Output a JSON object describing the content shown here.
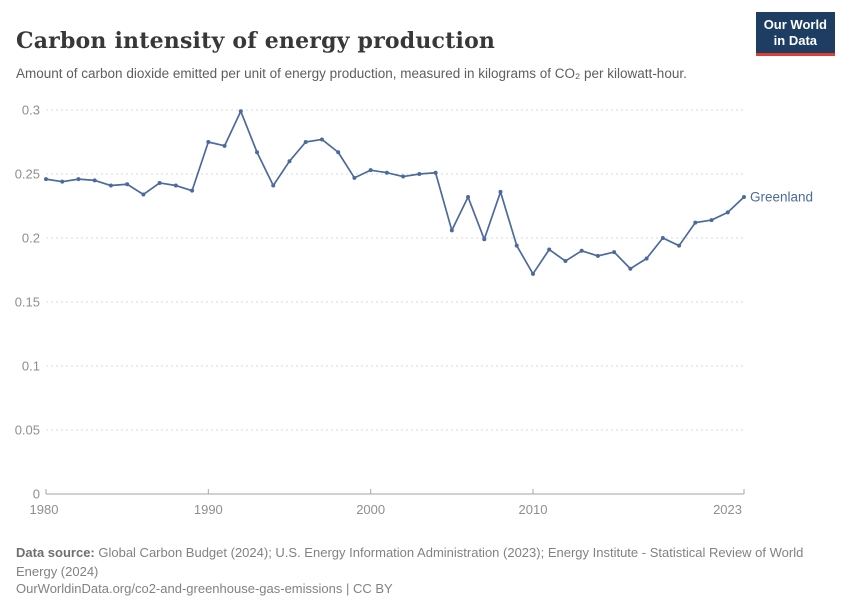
{
  "header": {
    "title": "Carbon intensity of energy production",
    "subtitle": "Amount of carbon dioxide emitted per unit of energy production, measured in kilograms of CO₂ per kilowatt-hour."
  },
  "logo": {
    "line1": "Our World",
    "line2": "in Data"
  },
  "colors": {
    "line": "#4C6A9C",
    "grid": "#dadada",
    "axis": "#a6a6a6",
    "tick_label": "#8f8f8f",
    "logo_bg": "#1d3d63",
    "logo_accent": "#dc3e34"
  },
  "chart_data": {
    "type": "line",
    "title": "Carbon intensity of energy production",
    "xlabel": "",
    "ylabel": "kg CO₂ per kWh",
    "xlim": [
      1980,
      2023
    ],
    "ylim": [
      0,
      0.3
    ],
    "grid": "horizontal-dashed",
    "legend": "end-of-line-label",
    "yticks": [
      {
        "value": 0,
        "label": "0"
      },
      {
        "value": 0.05,
        "label": "0.05"
      },
      {
        "value": 0.1,
        "label": "0.1"
      },
      {
        "value": 0.15,
        "label": "0.15"
      },
      {
        "value": 0.2,
        "label": "0.2"
      },
      {
        "value": 0.25,
        "label": "0.25"
      },
      {
        "value": 0.3,
        "label": "0.3"
      }
    ],
    "xticks": [
      {
        "year": 1980,
        "label": "1980"
      },
      {
        "year": 1990,
        "label": "1990"
      },
      {
        "year": 2000,
        "label": "2000"
      },
      {
        "year": 2010,
        "label": "2010"
      },
      {
        "year": 2023,
        "label": "2023"
      }
    ],
    "series": [
      {
        "name": "Greenland",
        "color": "#4C6A9C",
        "x": [
          1980,
          1981,
          1982,
          1983,
          1984,
          1985,
          1986,
          1987,
          1988,
          1989,
          1990,
          1991,
          1992,
          1993,
          1994,
          1995,
          1996,
          1997,
          1998,
          1999,
          2000,
          2001,
          2002,
          2003,
          2004,
          2005,
          2006,
          2007,
          2008,
          2009,
          2010,
          2011,
          2012,
          2013,
          2014,
          2015,
          2016,
          2017,
          2018,
          2019,
          2020,
          2021,
          2022,
          2023
        ],
        "values": [
          0.246,
          0.244,
          0.246,
          0.245,
          0.241,
          0.242,
          0.234,
          0.243,
          0.241,
          0.237,
          0.275,
          0.272,
          0.299,
          0.267,
          0.241,
          0.26,
          0.275,
          0.277,
          0.267,
          0.247,
          0.253,
          0.251,
          0.248,
          0.25,
          0.251,
          0.206,
          0.232,
          0.199,
          0.236,
          0.194,
          0.172,
          0.191,
          0.182,
          0.19,
          0.186,
          0.189,
          0.176,
          0.184,
          0.2,
          0.194,
          0.212,
          0.214,
          0.22,
          0.232
        ]
      }
    ]
  },
  "footer": {
    "source_label": "Data source:",
    "source_text": " Global Carbon Budget (2024); U.S. Energy Information Administration (2023); Energy Institute - Statistical Review of World Energy (2024)",
    "url_line": "OurWorldinData.org/co2-and-greenhouse-gas-emissions | CC BY"
  }
}
